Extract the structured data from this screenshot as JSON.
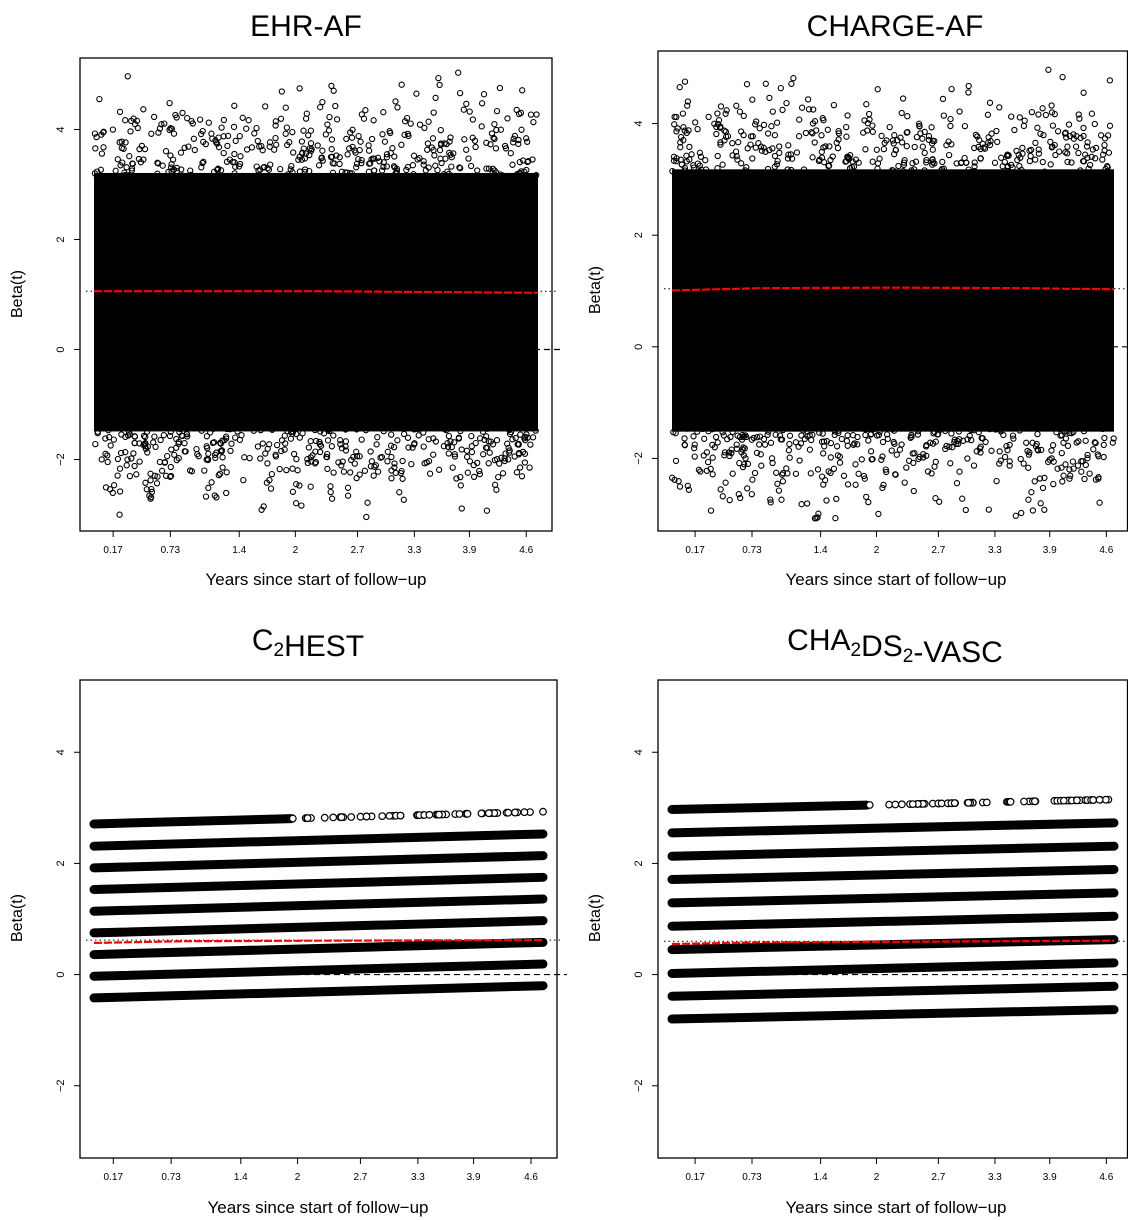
{
  "chart_data": [
    {
      "type": "scatter",
      "title": "EHR-AF",
      "title_parts": [
        {
          "text": "EHR-AF",
          "sub": false
        }
      ],
      "xlabel": "Years since start of follow−up",
      "ylabel": "Beta(t)",
      "x_tick_labels": [
        "0.17",
        "0.73",
        "1.4",
        "2",
        "2.7",
        "3.3",
        "3.9",
        "4.6"
      ],
      "y_ticks": [
        -2,
        0,
        2,
        4
      ],
      "y_tick_labels": [
        "−2",
        "0",
        "2",
        "4"
      ],
      "xlim": [
        0,
        5
      ],
      "ylim": [
        -3.3,
        5.3
      ],
      "pattern": "cloud",
      "cloud": {
        "center": 1.06,
        "spread": 1.3
      },
      "smooth": {
        "x": [
          0,
          2.5,
          5
        ],
        "y": [
          1.06,
          1.06,
          1.03
        ]
      },
      "hline_dotted": 1.06,
      "hline_dashed": 0,
      "point_color": "#000000",
      "smooth_color": "#ff0000",
      "grid": false,
      "legend": "none"
    },
    {
      "type": "scatter",
      "title": "CHARGE-AF",
      "title_parts": [
        {
          "text": "CHARGE-AF",
          "sub": false
        }
      ],
      "xlabel": "Years since start of follow−up",
      "ylabel": "Beta(t)",
      "x_tick_labels": [
        "0.17",
        "0.73",
        "1.4",
        "2",
        "2.7",
        "3.3",
        "3.9",
        "4.6"
      ],
      "y_ticks": [
        -2,
        0,
        2,
        4
      ],
      "y_tick_labels": [
        "−2",
        "0",
        "2",
        "4"
      ],
      "xlim": [
        0,
        5
      ],
      "ylim": [
        -3.3,
        5.3
      ],
      "pattern": "cloud",
      "cloud": {
        "center": 1.03,
        "spread": 1.3
      },
      "smooth": {
        "x": [
          0,
          1.0,
          2.5,
          4.0,
          5
        ],
        "y": [
          1.01,
          1.05,
          1.06,
          1.05,
          1.03
        ]
      },
      "hline_dotted": 1.04,
      "hline_dashed": 0,
      "point_color": "#000000",
      "smooth_color": "#ff0000",
      "grid": false,
      "legend": "none"
    },
    {
      "type": "scatter",
      "title": "C2HEST",
      "title_parts": [
        {
          "text": "C",
          "sub": false
        },
        {
          "text": "2",
          "sub": true
        },
        {
          "text": "HEST",
          "sub": false
        }
      ],
      "xlabel": "Years since start of follow−up",
      "ylabel": "Beta(t)",
      "x_tick_labels": [
        "0.17",
        "0.73",
        "1.4",
        "2",
        "2.7",
        "3.3",
        "3.9",
        "4.6"
      ],
      "y_ticks": [
        -2,
        0,
        2,
        4
      ],
      "y_tick_labels": [
        "−2",
        "0",
        "2",
        "4"
      ],
      "xlim": [
        0,
        5
      ],
      "ylim": [
        -3.3,
        5.3
      ],
      "pattern": "bands",
      "bands": [
        {
          "start": -0.42,
          "end": -0.2
        },
        {
          "start": -0.03,
          "end": 0.19
        },
        {
          "start": 0.36,
          "end": 0.58
        },
        {
          "start": 0.75,
          "end": 0.97
        },
        {
          "start": 1.14,
          "end": 1.36
        },
        {
          "start": 1.53,
          "end": 1.75
        },
        {
          "start": 1.92,
          "end": 2.14
        },
        {
          "start": 2.31,
          "end": 2.53
        },
        {
          "start": 2.71,
          "end": 2.93
        }
      ],
      "smooth": {
        "x": [
          0,
          1.0,
          2.5,
          5
        ],
        "y": [
          0.57,
          0.6,
          0.61,
          0.62
        ]
      },
      "hline_dotted": 0.62,
      "hline_dashed": 0,
      "point_color": "#000000",
      "smooth_color": "#ff0000",
      "grid": false,
      "legend": "none"
    },
    {
      "type": "scatter",
      "title": "CHA2DS2-VASC",
      "title_parts": [
        {
          "text": "CHA",
          "sub": false
        },
        {
          "text": "2",
          "sub": true
        },
        {
          "text": "DS",
          "sub": false
        },
        {
          "text": "2",
          "sub": true
        },
        {
          "text": "-VASC",
          "sub": false
        }
      ],
      "xlabel": "Years since start of follow−up",
      "ylabel": "Beta(t)",
      "x_tick_labels": [
        "0.17",
        "0.73",
        "1.4",
        "2",
        "2.7",
        "3.3",
        "3.9",
        "4.6"
      ],
      "y_ticks": [
        -2,
        0,
        2,
        4
      ],
      "y_tick_labels": [
        "−2",
        "0",
        "2",
        "4"
      ],
      "xlim": [
        0,
        5
      ],
      "ylim": [
        -3.3,
        5.3
      ],
      "pattern": "bands",
      "bands": [
        {
          "start": -0.8,
          "end": -0.63
        },
        {
          "start": -0.39,
          "end": -0.21
        },
        {
          "start": 0.02,
          "end": 0.21
        },
        {
          "start": 0.45,
          "end": 0.63
        },
        {
          "start": 0.87,
          "end": 1.05
        },
        {
          "start": 1.29,
          "end": 1.47
        },
        {
          "start": 1.71,
          "end": 1.89
        },
        {
          "start": 2.13,
          "end": 2.31
        },
        {
          "start": 2.55,
          "end": 2.73
        },
        {
          "start": 2.97,
          "end": 3.15
        }
      ],
      "smooth": {
        "x": [
          0,
          1.0,
          2.5,
          5
        ],
        "y": [
          0.55,
          0.58,
          0.59,
          0.61
        ]
      },
      "hline_dotted": 0.6,
      "hline_dashed": 0,
      "point_color": "#000000",
      "smooth_color": "#ff0000",
      "grid": false,
      "legend": "none"
    }
  ]
}
